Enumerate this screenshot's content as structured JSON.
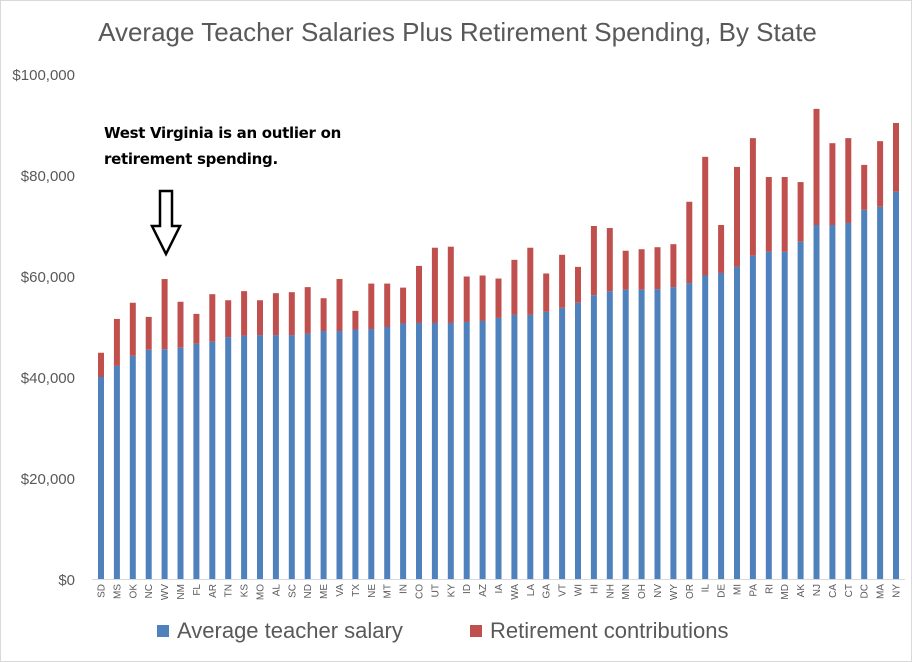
{
  "chart_data": {
    "type": "bar",
    "stacked": true,
    "title": "Average Teacher Salaries Plus Retirement Spending, By State",
    "annotation": [
      "West Virginia is an outlier on",
      "retirement spending."
    ],
    "annotation_target": "WV",
    "xlabel": "",
    "ylabel": "",
    "ylim": [
      0,
      100000
    ],
    "yticks": [
      0,
      20000,
      40000,
      60000,
      80000,
      100000
    ],
    "ytick_labels": [
      "$0",
      "$20,000",
      "$40,000",
      "$60,000",
      "$80,000",
      "$100,000"
    ],
    "grid": false,
    "legend_position": "bottom",
    "categories": [
      "SD",
      "MS",
      "OK",
      "NC",
      "WV",
      "NM",
      "FL",
      "AR",
      "TN",
      "KS",
      "MO",
      "AL",
      "SC",
      "ND",
      "ME",
      "VA",
      "TX",
      "NE",
      "MT",
      "IN",
      "CO",
      "UT",
      "KY",
      "ID",
      "AZ",
      "IA",
      "WA",
      "LA",
      "GA",
      "VT",
      "WI",
      "HI",
      "NH",
      "MN",
      "OH",
      "NV",
      "WY",
      "OR",
      "IL",
      "DE",
      "MI",
      "PA",
      "RI",
      "MD",
      "AK",
      "NJ",
      "CA",
      "CT",
      "DC",
      "MA",
      "NY"
    ],
    "series": [
      {
        "name": "Average teacher salary",
        "color": "#4f81bd",
        "values": [
          40000,
          42200,
          44200,
          45400,
          45500,
          45800,
          46600,
          47000,
          47900,
          48200,
          48300,
          48300,
          48300,
          48600,
          49100,
          49100,
          49400,
          49500,
          49900,
          50600,
          50700,
          50700,
          50700,
          50900,
          51100,
          51700,
          52300,
          52300,
          52900,
          53700,
          54700,
          56200,
          57000,
          57300,
          57300,
          57400,
          57800,
          58600,
          60100,
          60600,
          61800,
          64000,
          64800,
          64800,
          66800,
          70100,
          70100,
          70500,
          73100,
          73700,
          76700
        ]
      },
      {
        "name": "Retirement contributions",
        "color": "#c0504d",
        "values": [
          4800,
          9300,
          10500,
          6500,
          13900,
          9100,
          5900,
          9400,
          7300,
          8800,
          6900,
          8300,
          8500,
          9200,
          6500,
          10300,
          3700,
          9000,
          8600,
          7100,
          11300,
          14900,
          15100,
          9000,
          9000,
          7800,
          10900,
          13300,
          7600,
          10500,
          7100,
          13700,
          12500,
          7700,
          8000,
          8300,
          8500,
          16100,
          23500,
          9500,
          19800,
          23300,
          14800,
          14800,
          11800,
          23000,
          16200,
          16800,
          8900,
          13000,
          13600
        ]
      }
    ]
  }
}
